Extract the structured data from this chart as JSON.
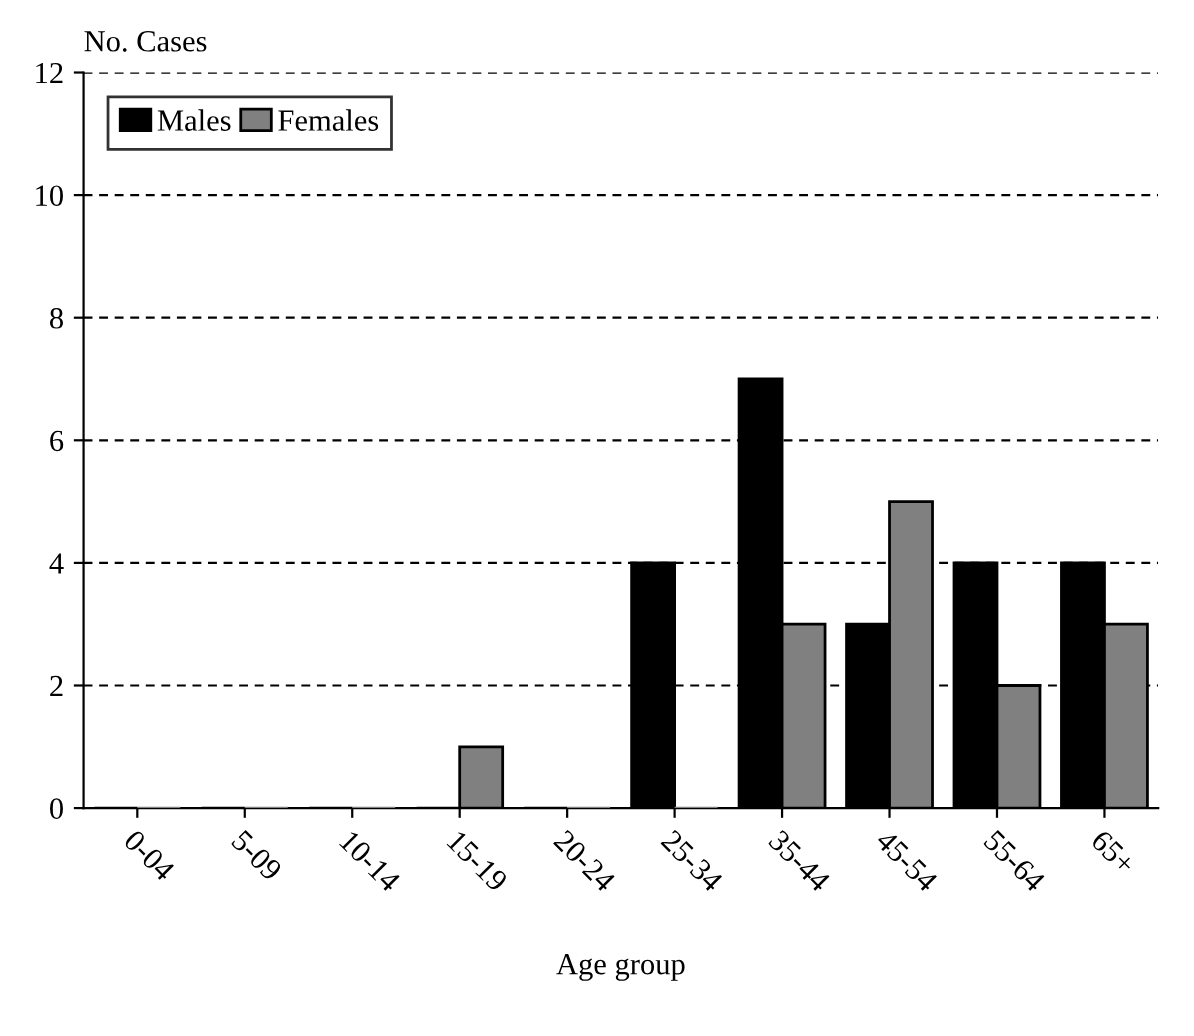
{
  "chart_data": {
    "type": "bar",
    "xlabel": "Age group",
    "ylabel": "No. Cases",
    "categories": [
      "0-04",
      "5-09",
      "10-14",
      "15-19",
      "20-24",
      "25-34",
      "35-44",
      "45-54",
      "55-64",
      "65+"
    ],
    "series": [
      {
        "name": "Males",
        "color": "#000000",
        "values": [
          0,
          0,
          0,
          0,
          0,
          4,
          7,
          3,
          4,
          4
        ]
      },
      {
        "name": "Females",
        "color": "#808080",
        "values": [
          0,
          0,
          0,
          1,
          0,
          0,
          3,
          5,
          2,
          3
        ]
      }
    ],
    "ylim": [
      0,
      12
    ],
    "yticks": [
      0,
      2,
      4,
      6,
      8,
      10,
      12
    ],
    "grid": "y",
    "line_style": "dashed",
    "legend": "top left"
  }
}
